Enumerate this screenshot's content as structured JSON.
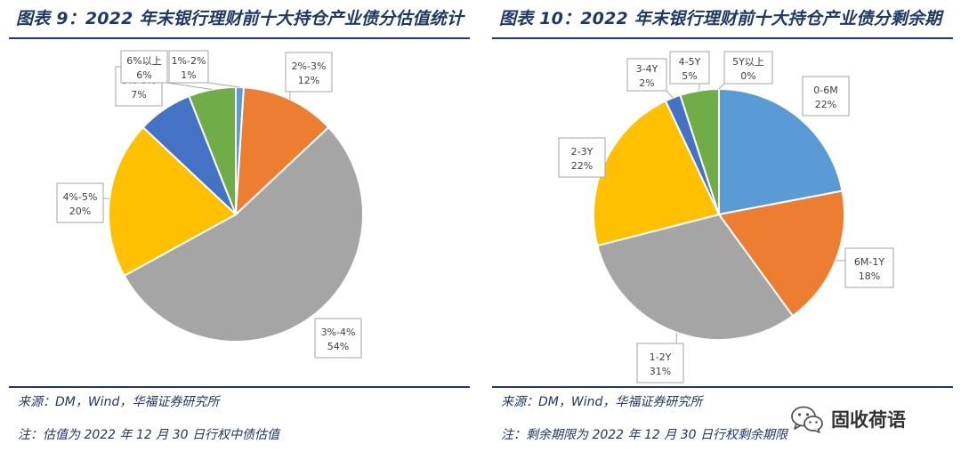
{
  "chart_data": [
    {
      "type": "pie",
      "title": "图表 9：2022 年末银行理财前十大持仓产业债分估值统计",
      "categories": [
        "1%-2%",
        "2%-3%",
        "3%-4%",
        "4%-5%",
        "5%-6%",
        "6%以上"
      ],
      "values": [
        1,
        12,
        54,
        20,
        7,
        6
      ],
      "value_labels": [
        "1%",
        "12%",
        "54%",
        "20%",
        "7%",
        "6%"
      ],
      "colors": [
        "#5B9BD5",
        "#ED7D31",
        "#A5A5A5",
        "#FFC000",
        "#4472C4",
        "#70AD47"
      ],
      "start_angle_deg": 0,
      "direction": "clockwise",
      "source": "来源：DM，Wind，华福证券研究所",
      "note": "注：估值为 2022 年 12 月 30 日行权中债估值"
    },
    {
      "type": "pie",
      "title": "图表 10：2022 年末银行理财前十大持仓产业债分剩余期",
      "categories": [
        "0-6M",
        "6M-1Y",
        "1-2Y",
        "2-3Y",
        "3-4Y",
        "4-5Y",
        "5Y以上"
      ],
      "values": [
        22,
        18,
        31,
        22,
        2,
        5,
        0
      ],
      "value_labels": [
        "22%",
        "18%",
        "31%",
        "22%",
        "2%",
        "5%",
        "0%"
      ],
      "colors": [
        "#5B9BD5",
        "#ED7D31",
        "#A5A5A5",
        "#FFC000",
        "#4472C4",
        "#70AD47",
        "#264478"
      ],
      "start_angle_deg": 0,
      "direction": "clockwise",
      "source": "来源：DM，Wind，华福证券研究所",
      "note": "注：剩余期限为 2022 年 12 月 30 日行权剩余期限"
    }
  ],
  "watermark": {
    "icon": "wechat-icon",
    "text": "固收荷语"
  }
}
